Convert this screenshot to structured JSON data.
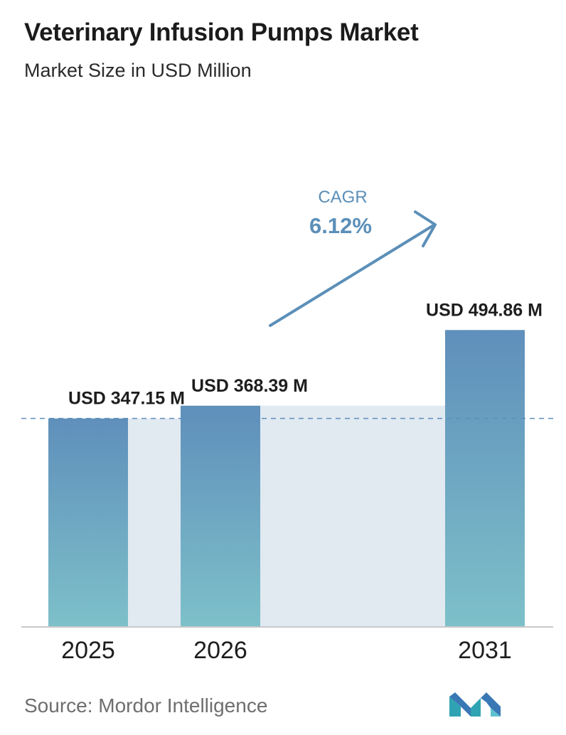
{
  "header": {
    "title": "Veterinary Infusion Pumps Market",
    "subtitle": "Market Size in USD Million"
  },
  "chart_data": {
    "type": "bar",
    "categories": [
      "2025",
      "2026",
      "2031"
    ],
    "values": [
      347.15,
      368.39,
      494.86
    ],
    "value_labels": [
      "USD 347.15 M",
      "USD 368.39 M",
      "USD 494.86 M"
    ],
    "cagr": {
      "label": "CAGR",
      "value": "6.12%"
    },
    "reference_line": "dashed line at 2025 value",
    "colors": {
      "bar_top": "#5f8fbb",
      "bar_bottom": "#7dc0c9",
      "band": "#e1e9f1",
      "accent": "#5b8fb8"
    },
    "grid": false
  },
  "footer": {
    "source": "Source:  Mordor Intelligence",
    "logo": "mordor-intelligence-logo"
  }
}
